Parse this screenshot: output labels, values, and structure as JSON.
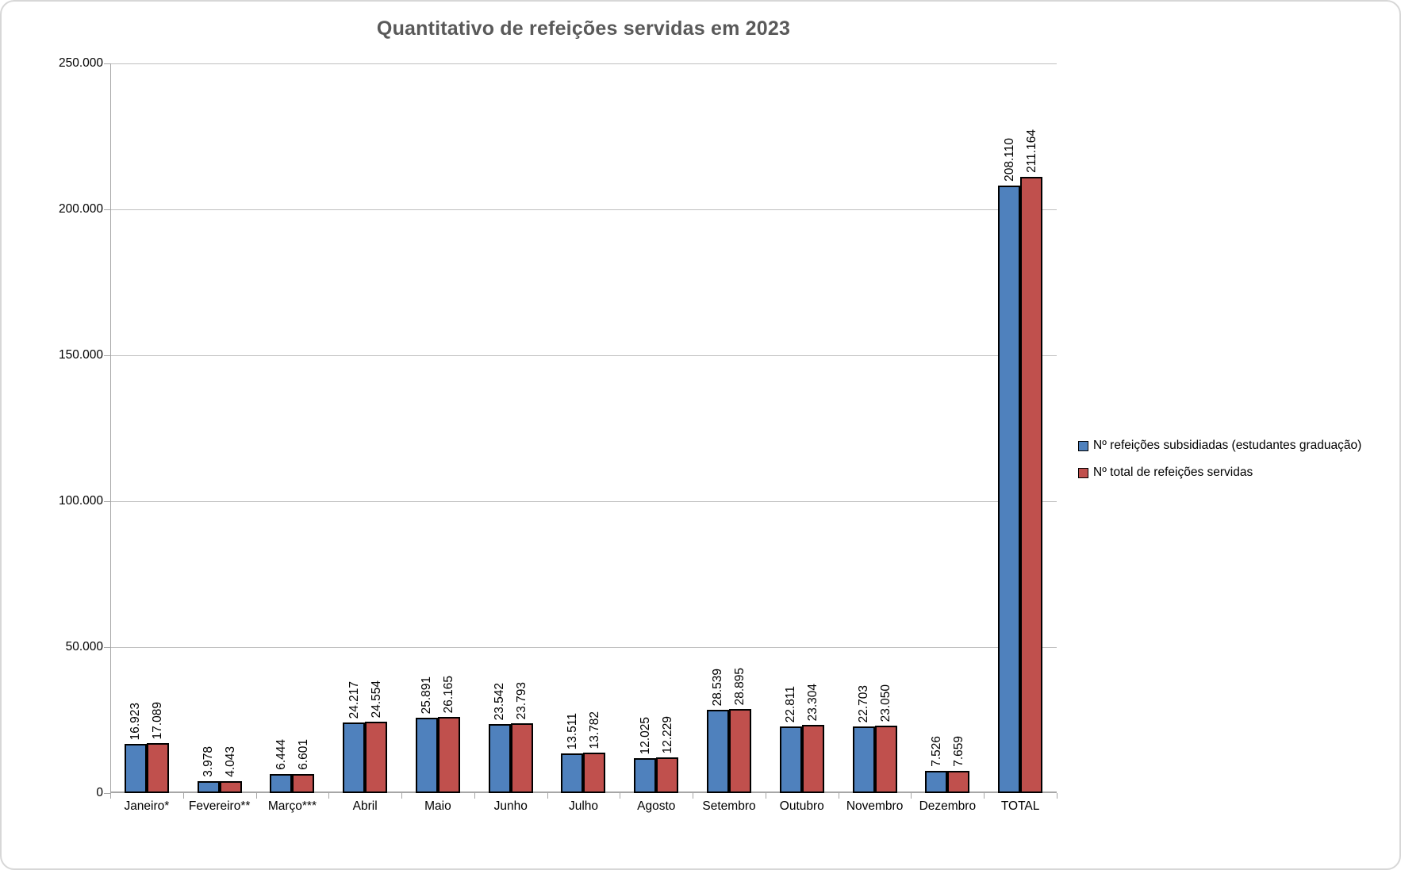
{
  "chart_data": {
    "type": "bar",
    "title": "Quantitativo de refeições servidas em 2023",
    "categories": [
      "Janeiro*",
      "Fevereiro**",
      "Março***",
      "Abril",
      "Maio",
      "Junho",
      "Julho",
      "Agosto",
      "Setembro",
      "Outubro",
      "Novembro",
      "Dezembro",
      "TOTAL"
    ],
    "series": [
      {
        "name": "Nº refeições subsidiadas (estudantes graduação)",
        "color": "#4F81BD",
        "values": [
          16923,
          3978,
          6444,
          24217,
          25891,
          23542,
          13511,
          12025,
          28539,
          22811,
          22703,
          7526,
          208110
        ],
        "labels": [
          "16.923",
          "3.978",
          "6.444",
          "24.217",
          "25.891",
          "23.542",
          "13.511",
          "12.025",
          "28.539",
          "22.811",
          "22.703",
          "7.526",
          "208.110"
        ]
      },
      {
        "name": "Nº total de refeições servidas",
        "color": "#C0504D",
        "values": [
          17089,
          4043,
          6601,
          24554,
          26165,
          23793,
          13782,
          12229,
          28895,
          23304,
          23050,
          7659,
          211164
        ],
        "labels": [
          "17.089",
          "4.043",
          "6.601",
          "24.554",
          "26.165",
          "23.793",
          "13.782",
          "12.229",
          "28.895",
          "23.304",
          "23.050",
          "7.659",
          "211.164"
        ]
      }
    ],
    "xlabel": "",
    "ylabel": "",
    "ylim": [
      0,
      250000
    ],
    "ytick_values": [
      0,
      50000,
      100000,
      150000,
      200000,
      250000
    ],
    "ytick_labels": [
      "0",
      "50.000",
      "100.000",
      "150.000",
      "200.000",
      "250.000"
    ],
    "grid": true,
    "legend_position": "right",
    "data_label_rotation": 90
  },
  "colors": {
    "title": "#595959",
    "gridline": "#BFBFBF",
    "axis": "#A6A6A6",
    "frame_border": "#D7D7D7",
    "bar_border": "#000000",
    "text": "#000000"
  }
}
